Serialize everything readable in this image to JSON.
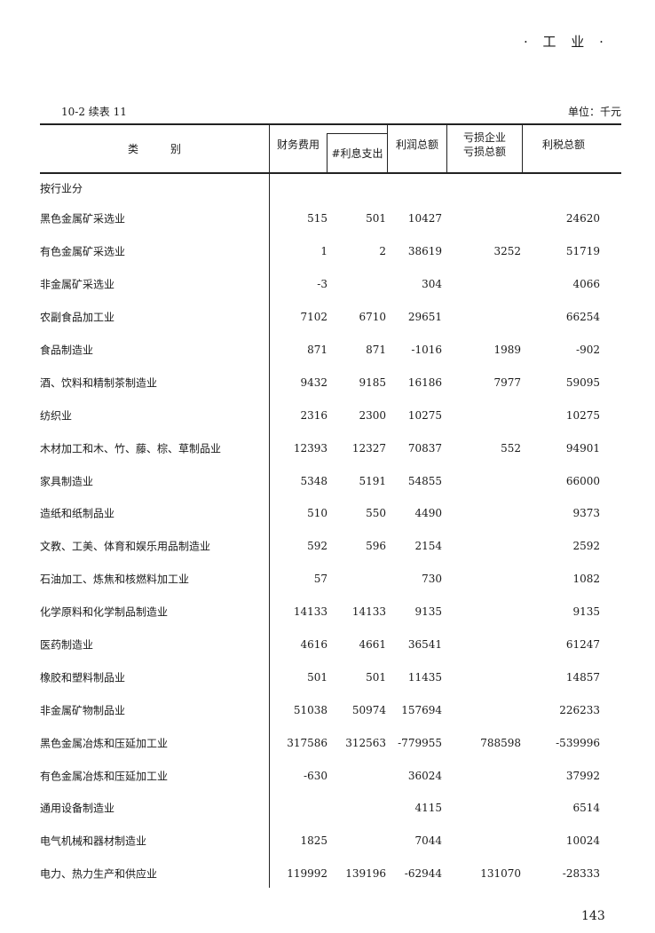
{
  "running_head": "· 工 业 ·",
  "caption": "10-2  续表 11",
  "unit": "单位：千元",
  "headers": {
    "category": "类　　　别",
    "c1": "财务费用",
    "c2": "#利息支出",
    "c3": "利润总额",
    "c4a": "亏损企业",
    "c4b": "亏损总额",
    "c5": "利税总额"
  },
  "section": "按行业分",
  "rows": [
    {
      "label": "黑色金属矿采选业",
      "v": [
        "515",
        "501",
        "10427",
        "",
        "24620"
      ]
    },
    {
      "label": "有色金属矿采选业",
      "v": [
        "1",
        "2",
        "38619",
        "3252",
        "51719"
      ]
    },
    {
      "label": "非金属矿采选业",
      "v": [
        "-3",
        "",
        "304",
        "",
        "4066"
      ]
    },
    {
      "label": "农副食品加工业",
      "v": [
        "7102",
        "6710",
        "29651",
        "",
        "66254"
      ]
    },
    {
      "label": "食品制造业",
      "v": [
        "871",
        "871",
        "-1016",
        "1989",
        "-902"
      ]
    },
    {
      "label": "酒、饮料和精制茶制造业",
      "v": [
        "9432",
        "9185",
        "16186",
        "7977",
        "59095"
      ]
    },
    {
      "label": "纺织业",
      "v": [
        "2316",
        "2300",
        "10275",
        "",
        "10275"
      ]
    },
    {
      "label": "木材加工和木、竹、藤、棕、草制品业",
      "v": [
        "12393",
        "12327",
        "70837",
        "552",
        "94901"
      ]
    },
    {
      "label": "家具制造业",
      "v": [
        "5348",
        "5191",
        "54855",
        "",
        "66000"
      ]
    },
    {
      "label": "造纸和纸制品业",
      "v": [
        "510",
        "550",
        "4490",
        "",
        "9373"
      ]
    },
    {
      "label": "文教、工美、体育和娱乐用品制造业",
      "v": [
        "592",
        "596",
        "2154",
        "",
        "2592"
      ]
    },
    {
      "label": "石油加工、炼焦和核燃料加工业",
      "v": [
        "57",
        "",
        "730",
        "",
        "1082"
      ]
    },
    {
      "label": "化学原料和化学制品制造业",
      "v": [
        "14133",
        "14133",
        "9135",
        "",
        "9135"
      ]
    },
    {
      "label": "医药制造业",
      "v": [
        "4616",
        "4661",
        "36541",
        "",
        "61247"
      ]
    },
    {
      "label": "橡胶和塑料制品业",
      "v": [
        "501",
        "501",
        "11435",
        "",
        "14857"
      ]
    },
    {
      "label": "非金属矿物制品业",
      "v": [
        "51038",
        "50974",
        "157694",
        "",
        "226233"
      ]
    },
    {
      "label": "黑色金属冶炼和压延加工业",
      "v": [
        "317586",
        "312563",
        "-779955",
        "788598",
        "-539996"
      ]
    },
    {
      "label": "有色金属冶炼和压延加工业",
      "v": [
        "-630",
        "",
        "36024",
        "",
        "37992"
      ]
    },
    {
      "label": "通用设备制造业",
      "v": [
        "",
        "",
        "4115",
        "",
        "6514"
      ]
    },
    {
      "label": "电气机械和器材制造业",
      "v": [
        "1825",
        "",
        "7044",
        "",
        "10024"
      ]
    },
    {
      "label": "电力、热力生产和供应业",
      "v": [
        "119992",
        "139196",
        "-62944",
        "131070",
        "-28333"
      ]
    }
  ],
  "page_number": "143"
}
